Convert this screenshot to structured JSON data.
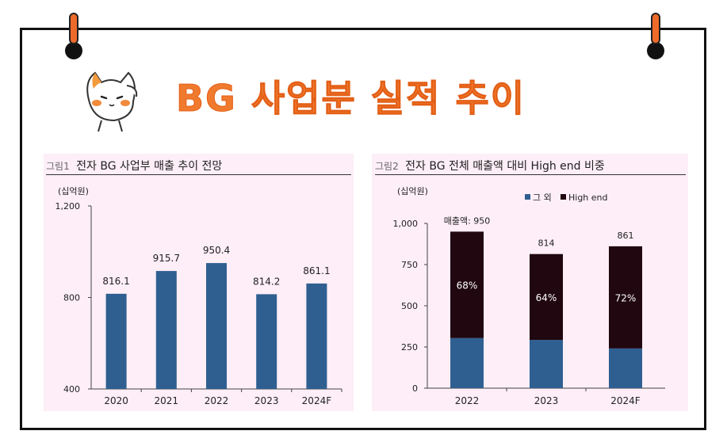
{
  "page_title": "BG 사업분 실적 추이",
  "colors": {
    "accent": "#f07a2e",
    "bar": "#2f5f91",
    "high_end": "#200710",
    "panel_bg": "#fdeef7"
  },
  "figure1": {
    "num": "그림1",
    "title": "전자 BG 사업부 매출 추이 전망",
    "unit": "(십억원)"
  },
  "figure2": {
    "num": "그림2",
    "title": "전자 BG 전체 매출액 대비 High end 비중",
    "unit": "(십억원)",
    "total_note": "매출액: 950"
  },
  "chart_data": [
    {
      "type": "bar",
      "title": "전자 BG 사업부 매출 추이 전망",
      "ylabel": "(십억원)",
      "categories": [
        "2020",
        "2021",
        "2022",
        "2023",
        "2024F"
      ],
      "values": [
        816.1,
        915.7,
        950.4,
        814.2,
        861.1
      ],
      "data_labels": [
        "816.1",
        "915.7",
        "950.4",
        "814.2",
        "861.1"
      ],
      "ylim": [
        400,
        1200
      ],
      "yticks": [
        400,
        800,
        1200
      ],
      "ytick_labels": [
        "400",
        "800",
        "1,200"
      ],
      "grid": false
    },
    {
      "type": "bar",
      "stacked": true,
      "title": "전자 BG 전체 매출액 대비 High end 비중",
      "ylabel": "(십억원)",
      "categories": [
        "2022",
        "2023",
        "2024F"
      ],
      "series": [
        {
          "name": "그 외",
          "values": [
            304,
            293,
            241
          ]
        },
        {
          "name": "High end",
          "values": [
            646,
            521,
            620
          ]
        }
      ],
      "totals": [
        950,
        814,
        861
      ],
      "total_labels": [
        "매출액: 950",
        "814",
        "861"
      ],
      "share_labels": [
        "68%",
        "64%",
        "72%"
      ],
      "ylim": [
        0,
        1000
      ],
      "yticks": [
        0,
        250,
        500,
        750,
        1000
      ],
      "ytick_labels": [
        "0",
        "250",
        "500",
        "750",
        "1,000"
      ],
      "legend": "top",
      "grid": false
    }
  ]
}
